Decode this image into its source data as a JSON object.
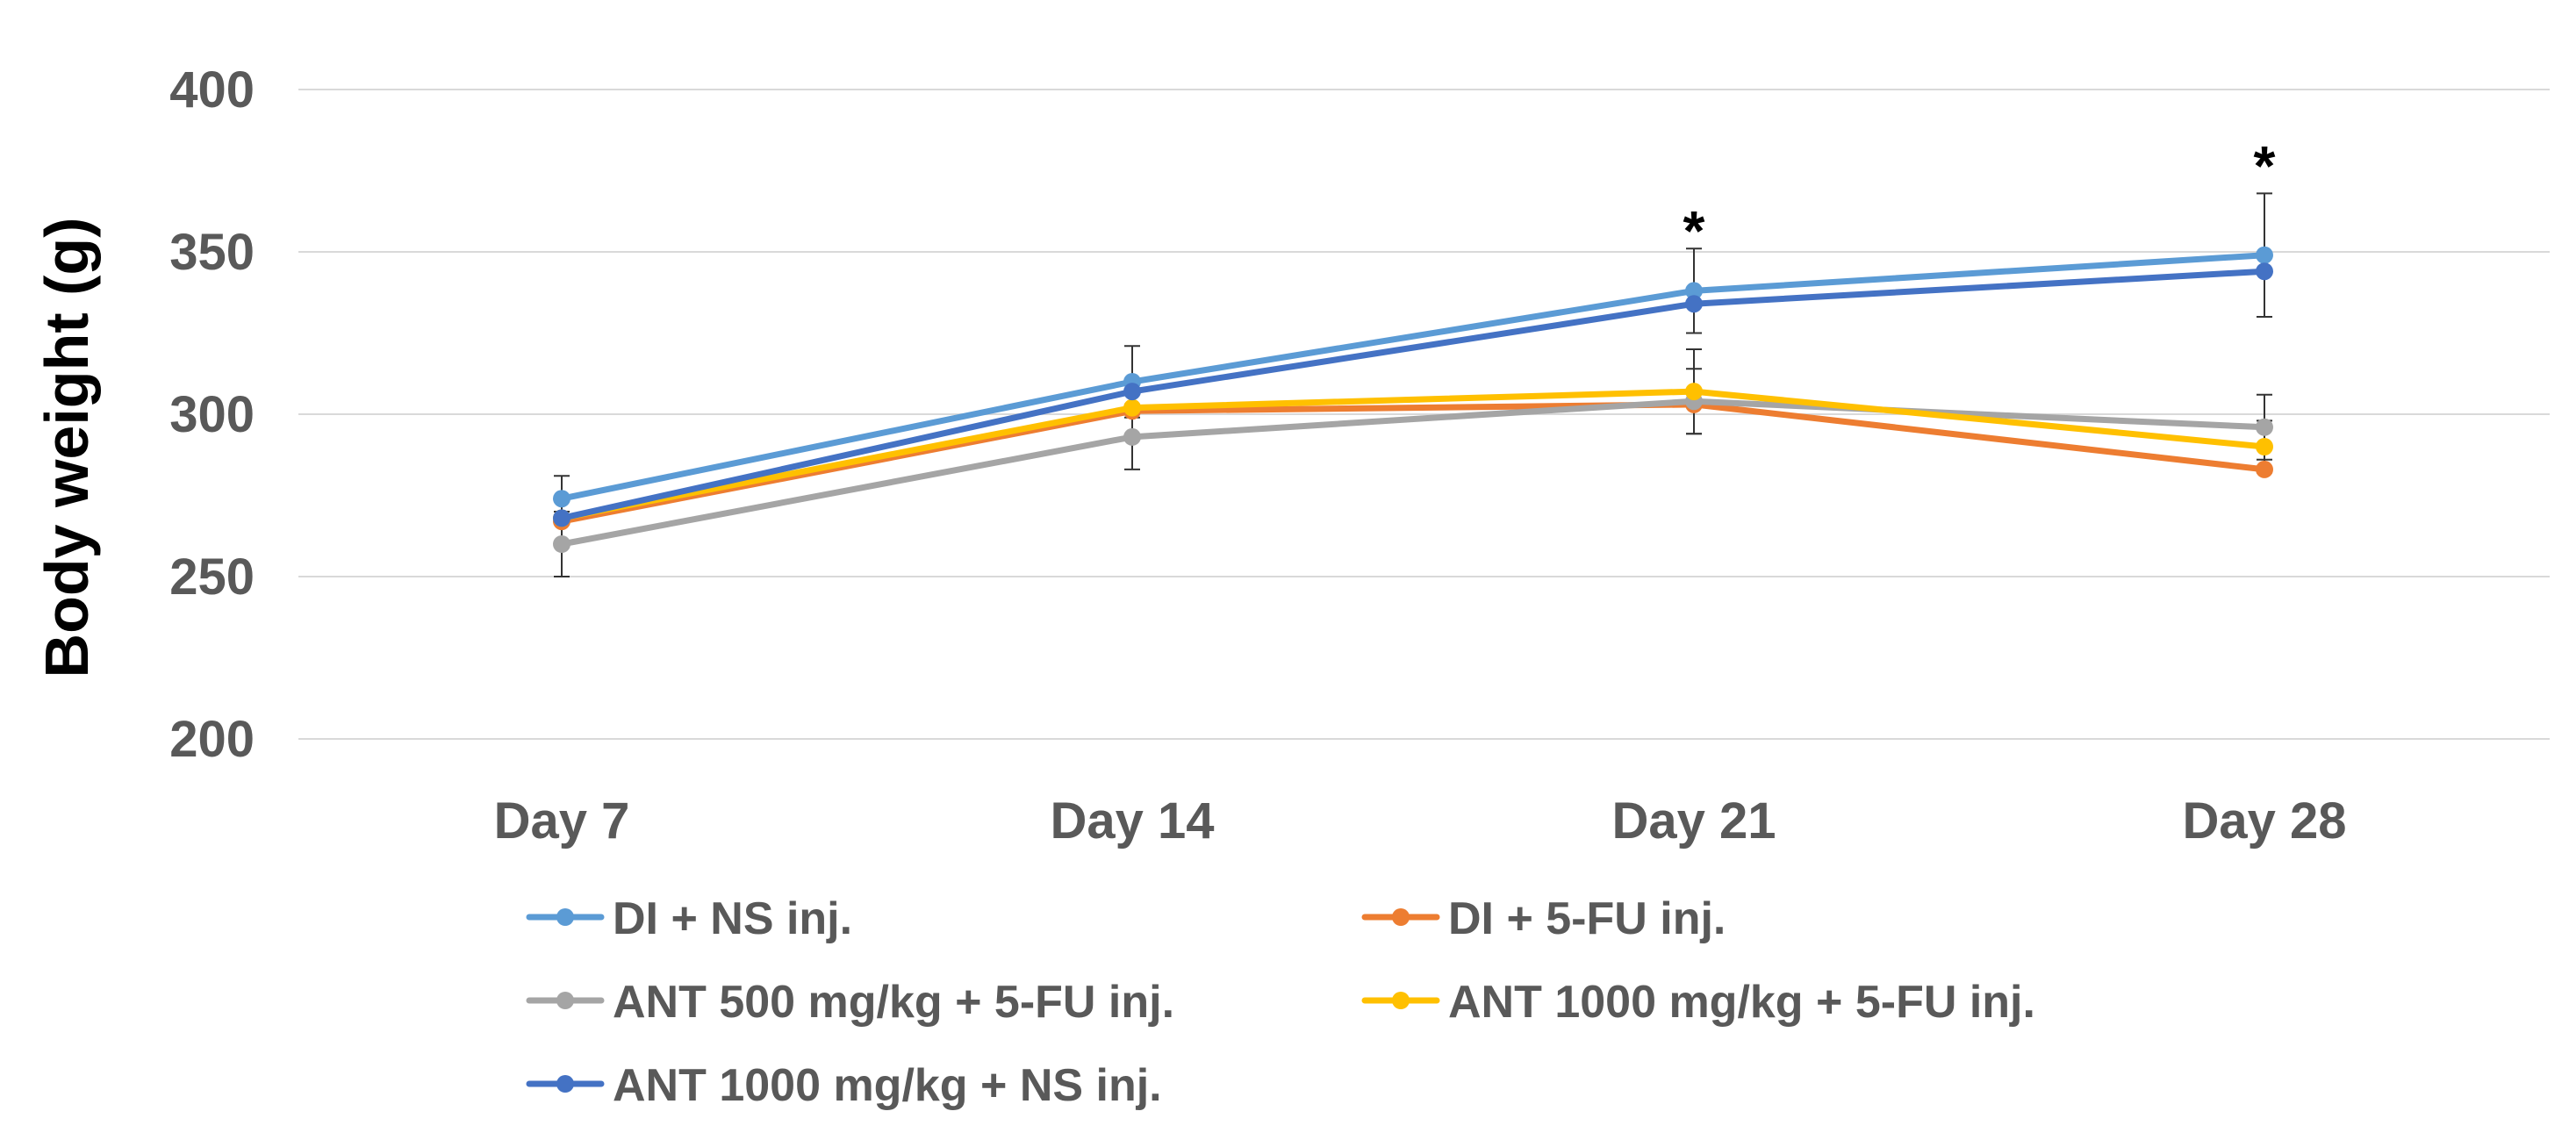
{
  "chart_data": {
    "type": "line",
    "title": "",
    "xlabel": "",
    "ylabel": "Body weight (g)",
    "ylim": [
      200,
      400
    ],
    "y_ticks": [
      "200",
      "250",
      "300",
      "350",
      "400"
    ],
    "grid": true,
    "legend_position": "bottom",
    "categories": [
      "Day 7",
      "Day 14",
      "Day 21",
      "Day 28"
    ],
    "series": [
      {
        "name": "DI + NS inj.",
        "color": "#5B9BD5",
        "values": [
          274,
          310,
          338,
          349
        ],
        "errors": [
          7,
          11,
          13,
          19
        ]
      },
      {
        "name": "DI  + 5-FU inj.",
        "color": "#ED7D31",
        "values": [
          267,
          301,
          303,
          283
        ],
        "errors": [
          0,
          0,
          0,
          0
        ]
      },
      {
        "name": "ANT 500 mg/kg + 5-FU inj.",
        "color": "#A5A5A5",
        "values": [
          260,
          293,
          304,
          296
        ],
        "errors": [
          10,
          10,
          10,
          10
        ]
      },
      {
        "name": "ANT 1000 mg/kg  + 5-FU inj.",
        "color": "#FFC000",
        "values": [
          268,
          302,
          307,
          290
        ],
        "errors": [
          0,
          0,
          13,
          8
        ]
      },
      {
        "name": "ANT 1000 mg/kg  + NS inj.",
        "color": "#4472C4",
        "values": [
          268,
          307,
          334,
          344
        ],
        "errors": [
          0,
          0,
          0,
          0
        ]
      }
    ],
    "annotations": [
      {
        "text": "*",
        "category": "Day 21",
        "y": 357
      },
      {
        "text": "*",
        "category": "Day 28",
        "y": 377
      }
    ]
  }
}
